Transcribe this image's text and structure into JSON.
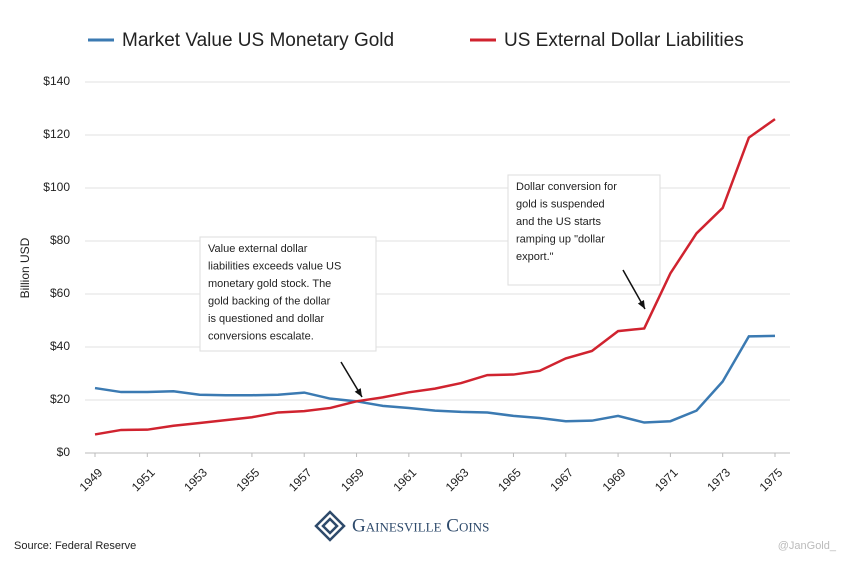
{
  "chart_data": {
    "type": "line",
    "y_label": "Billion USD",
    "x": [
      1949,
      1950,
      1951,
      1952,
      1953,
      1954,
      1955,
      1956,
      1957,
      1958,
      1959,
      1960,
      1961,
      1962,
      1963,
      1964,
      1965,
      1966,
      1967,
      1968,
      1969,
      1970,
      1971,
      1972,
      1973,
      1974,
      1975
    ],
    "series": [
      {
        "name": "Market Value US Monetary Gold",
        "color": "#3b7ab2",
        "values": [
          24.5,
          23,
          23,
          23.3,
          22,
          21.8,
          21.8,
          22,
          22.8,
          20.5,
          19.5,
          17.8,
          17,
          16,
          15.5,
          15.3,
          14,
          13.2,
          12,
          12.2,
          14,
          11.5,
          12,
          16,
          27,
          44,
          44.2
        ]
      },
      {
        "name": "US External Dollar Liabilities",
        "color": "#d0232f",
        "values": [
          7,
          8.7,
          8.8,
          10.3,
          11.3,
          12.4,
          13.5,
          15.3,
          15.8,
          17,
          19.5,
          21,
          22.9,
          24.3,
          26.4,
          29.4,
          29.6,
          31,
          35.7,
          38.5,
          46,
          47,
          67.8,
          82.9,
          92.5,
          119,
          126
        ]
      }
    ],
    "xlim": [
      1949,
      1975
    ],
    "xticks": [
      1949,
      1951,
      1953,
      1955,
      1957,
      1959,
      1961,
      1963,
      1965,
      1967,
      1969,
      1971,
      1973,
      1975
    ],
    "ylim": [
      0,
      140
    ],
    "yticks": [
      {
        "value": 0,
        "label": "$0"
      },
      {
        "value": 20,
        "label": "$20"
      },
      {
        "value": 40,
        "label": "$40"
      },
      {
        "value": 60,
        "label": "$60"
      },
      {
        "value": 80,
        "label": "$80"
      },
      {
        "value": 100,
        "label": "$100"
      },
      {
        "value": 120,
        "label": "$120"
      },
      {
        "value": 140,
        "label": "$140"
      }
    ],
    "grid": true,
    "legend": "top",
    "annotations": [
      {
        "lines": [
          "Value external dollar",
          "liabilities exceeds value US",
          "monetary gold stock. The",
          "gold backing of the dollar",
          "is questioned and dollar",
          "conversions escalate."
        ]
      },
      {
        "lines": [
          "Dollar conversion for",
          "gold is suspended",
          "and the US starts",
          "ramping up \"dollar",
          "export.\""
        ]
      }
    ],
    "brand": "Gainesville Coins",
    "source": "Source: Federal Reserve",
    "watermark": "@JanGold_"
  }
}
